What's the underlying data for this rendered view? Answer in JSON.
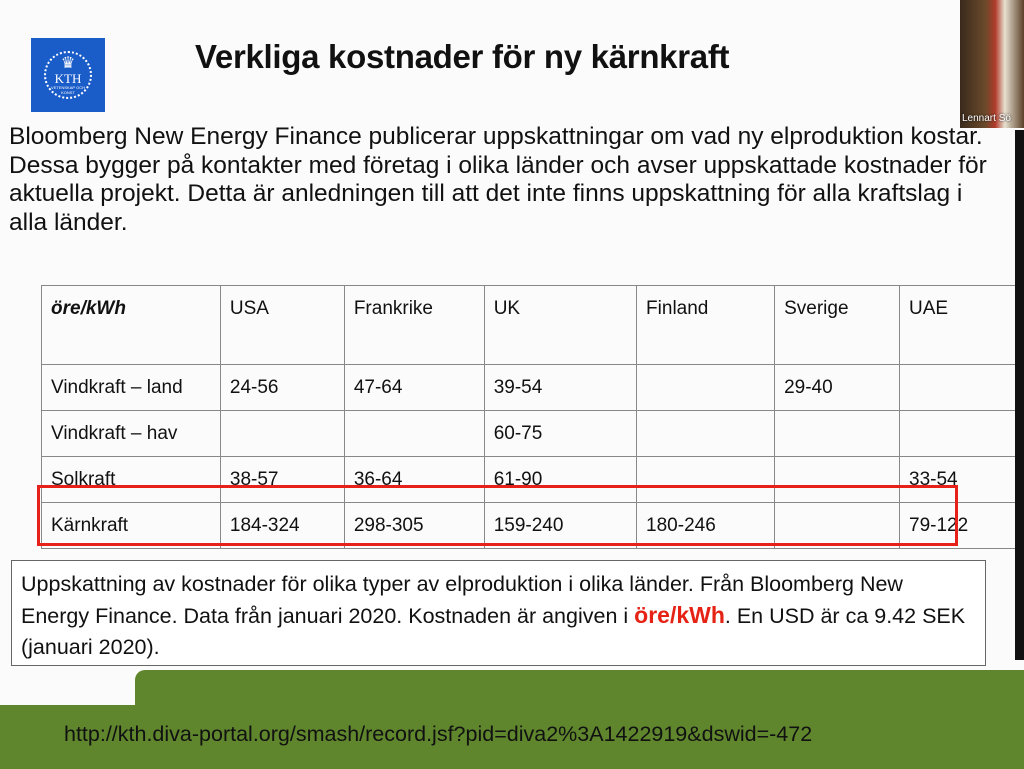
{
  "slide": {
    "title": "Verkliga kostnader för ny kärnkraft",
    "logo": {
      "text": "KTH",
      "subtext": "VETENSKAP OCH KONST",
      "color": "#1a5cc8"
    },
    "intro": "Bloomberg New Energy Finance publicerar uppskattningar om vad ny elproduktion kostar. Dessa bygger på kontakter med företag i olika länder och avser uppskattade kostnader för aktuella projekt. Detta är anledningen till att det inte finns uppskattning för alla kraftslag i alla länder.",
    "table": {
      "headers": [
        "öre/kWh",
        "USA",
        "Frankrike",
        "UK",
        "Finland",
        "Sverige",
        "UAE"
      ],
      "rows": [
        [
          "Vindkraft – land",
          "24-56",
          "47-64",
          "39-54",
          "",
          "29-40",
          ""
        ],
        [
          "Vindkraft – hav",
          "",
          "",
          "60-75",
          "",
          "",
          ""
        ],
        [
          "Solkraft",
          "38-57",
          "36-64",
          "61-90",
          "",
          "",
          "33-54"
        ],
        [
          "Kärnkraft",
          "184-324",
          "298-305",
          "159-240",
          "180-246",
          "",
          "79-122"
        ]
      ],
      "highlight_color": "#e8201a"
    },
    "caption": {
      "text1": "Uppskattning av kostnader för olika typer av elproduktion i olika länder. Från Bloomberg New Energy Finance. Data från januari 2020. Kostnaden är angiven i",
      "unit": "öre/kWh",
      "text2": ". En USD är ca 9.42 SEK (januari 2020)."
    },
    "url": "http://kth.diva-portal.org/smash/record.jsf?pid=diva2%3A1422919&dswid=-472",
    "footer_color": "#5f862d"
  },
  "participant": {
    "name": "Lennart Sö"
  }
}
